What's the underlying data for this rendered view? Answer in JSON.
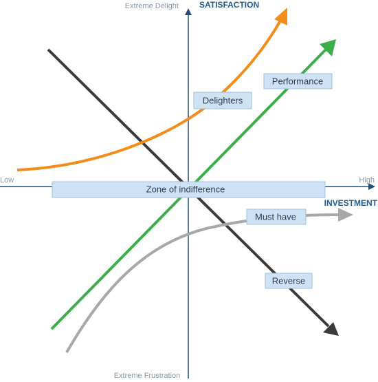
{
  "axes": {
    "y_top": "Extreme Delight",
    "y_title": "SATISFACTION",
    "y_bottom": "Extreme Frustration",
    "x_left": "Low",
    "x_right": "High",
    "x_title": "INVESTMENT"
  },
  "curves": {
    "delighters": "Delighters",
    "performance": "Performance",
    "indifference": "Zone of indifference",
    "must_have": "Must have",
    "reverse": "Reverse"
  }
}
